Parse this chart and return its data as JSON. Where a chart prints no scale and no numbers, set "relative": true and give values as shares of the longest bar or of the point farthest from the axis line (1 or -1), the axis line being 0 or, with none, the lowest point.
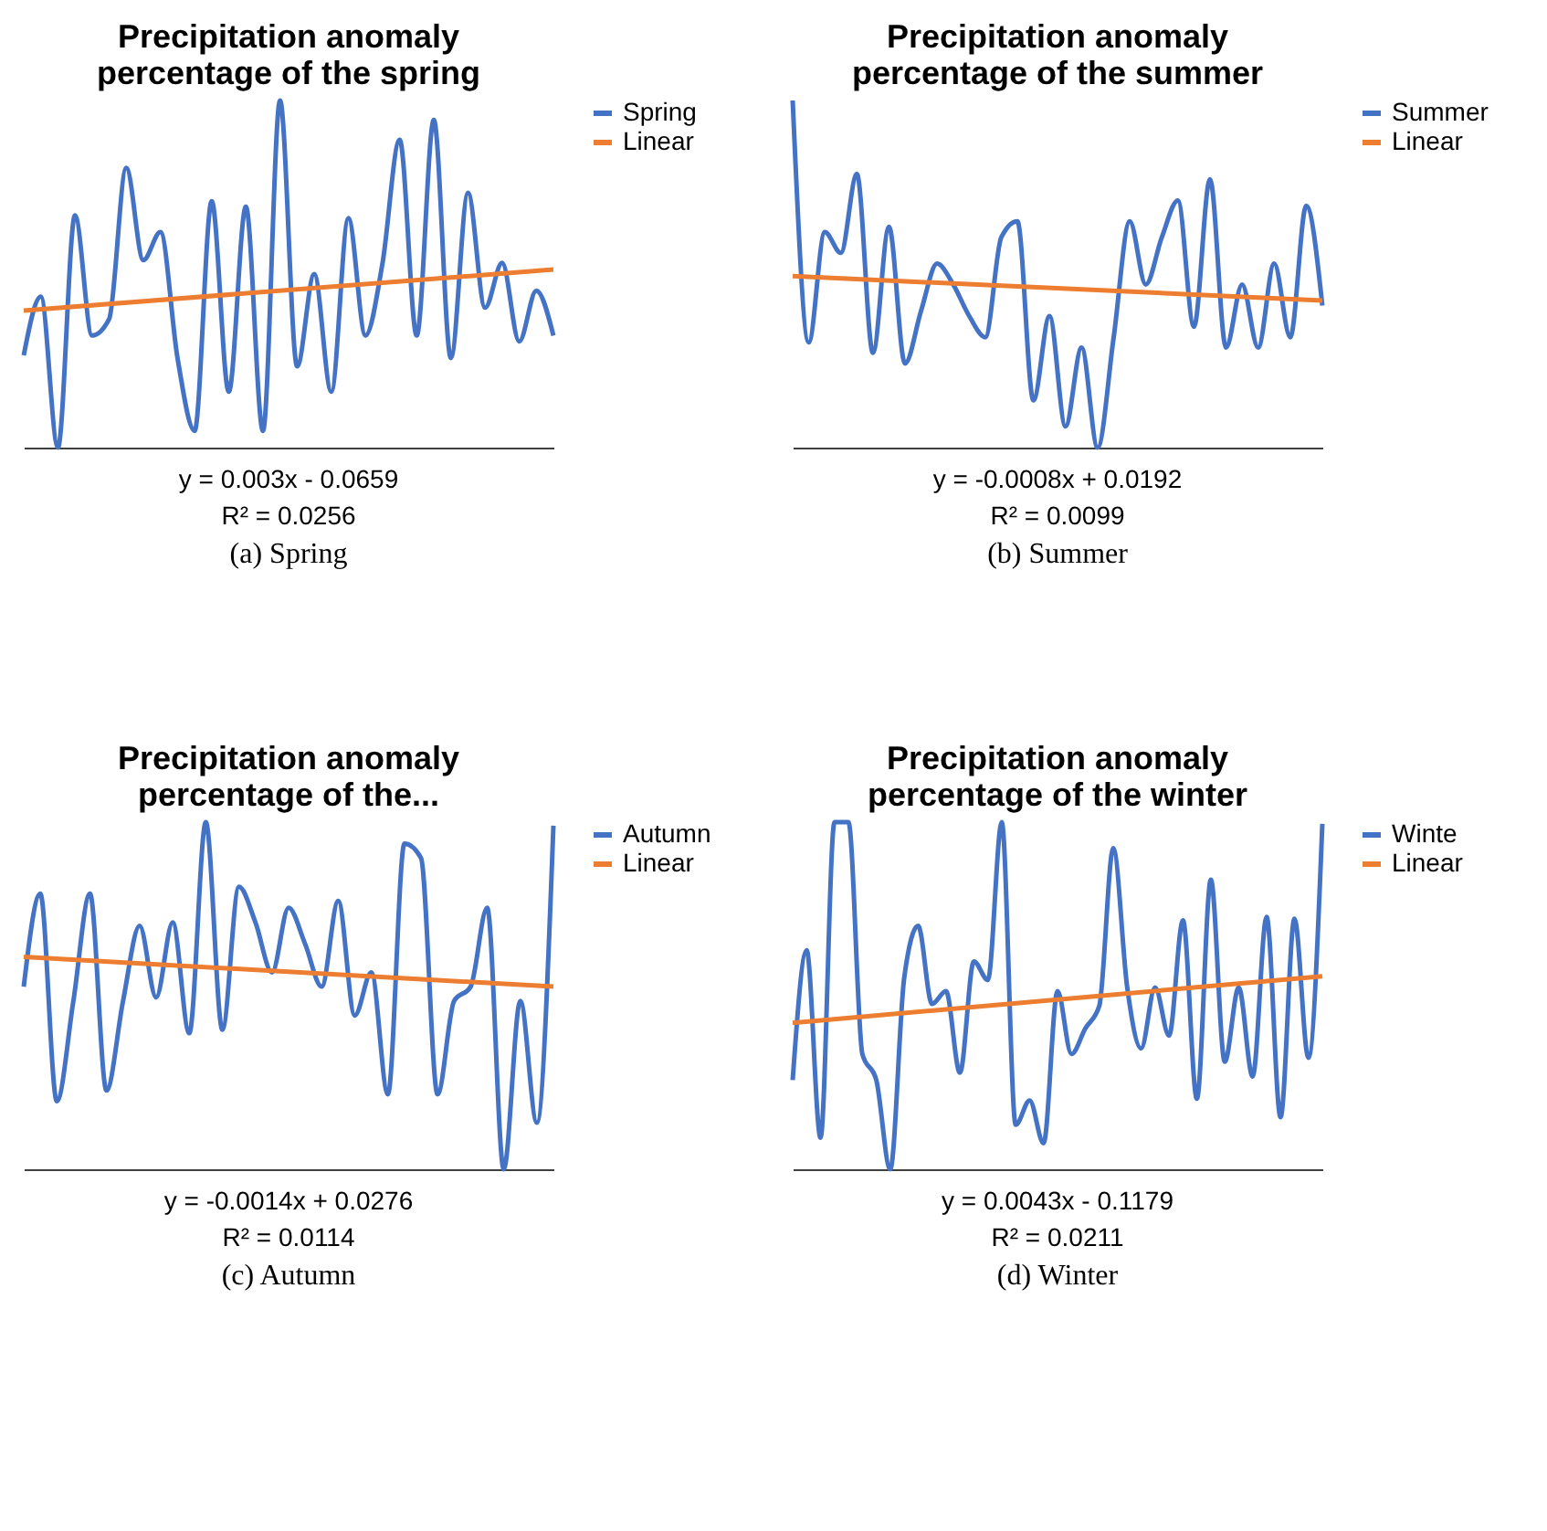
{
  "chart_data": [
    {
      "type": "line",
      "title": "Precipitation anomaly percentage of the spring",
      "relative": true,
      "tick_labels": false,
      "legend": "right",
      "categories": [
        null,
        null,
        null,
        null,
        null,
        null,
        null,
        null,
        null,
        null,
        null,
        null,
        null,
        null,
        null,
        null,
        null,
        null,
        null,
        null,
        null,
        null,
        null,
        null,
        null,
        null,
        null,
        null,
        null,
        null,
        null,
        null
      ],
      "series": [
        {
          "name": "Spring",
          "color": "#4472c4",
          "values": [
            0.266,
            0.435,
            0,
            0.669,
            0.323,
            0.371,
            0.806,
            0.54,
            0.621,
            0.258,
            0.048,
            0.71,
            0.161,
            0.694,
            0.048,
            1,
            0.234,
            0.5,
            0.161,
            0.661,
            0.323,
            0.532,
            0.887,
            0.323,
            0.944,
            0.258,
            0.734,
            0.403,
            0.532,
            0.306,
            0.452,
            0.323
          ]
        },
        {
          "name": "Linear",
          "color": "#ed7d31",
          "values": [
            0.395,
            null,
            null,
            null,
            null,
            null,
            null,
            null,
            null,
            null,
            null,
            null,
            null,
            null,
            null,
            null,
            null,
            null,
            null,
            null,
            null,
            null,
            null,
            null,
            null,
            null,
            null,
            null,
            null,
            null,
            null,
            0.513
          ]
        }
      ],
      "annotations": [
        "y = 0.003x - 0.0659",
        "R² = 0.0256",
        "(a) Spring"
      ]
    },
    {
      "type": "line",
      "title": "Precipitation anomaly percentage of the summer",
      "relative": true,
      "tick_labels": false,
      "legend": "right",
      "categories": [
        null,
        null,
        null,
        null,
        null,
        null,
        null,
        null,
        null,
        null,
        null,
        null,
        null,
        null,
        null,
        null,
        null,
        null,
        null,
        null,
        null,
        null,
        null,
        null,
        null,
        null,
        null,
        null,
        null,
        null,
        null,
        null,
        null,
        null
      ],
      "series": [
        {
          "name": "Summer",
          "color": "#4472c4",
          "values": [
            1,
            0.303,
            0.621,
            0.561,
            0.788,
            0.273,
            0.636,
            0.242,
            0.394,
            0.53,
            0.47,
            0.379,
            0.318,
            0.606,
            0.652,
            0.136,
            0.379,
            0.061,
            0.288,
            0,
            0.318,
            0.652,
            0.47,
            0.606,
            0.712,
            0.348,
            0.773,
            0.288,
            0.47,
            0.288,
            0.53,
            0.318,
            0.697,
            0.409
          ]
        },
        {
          "name": "Linear",
          "color": "#ed7d31",
          "values": [
            0.494,
            null,
            null,
            null,
            null,
            null,
            null,
            null,
            null,
            null,
            null,
            null,
            null,
            null,
            null,
            null,
            null,
            null,
            null,
            null,
            null,
            null,
            null,
            null,
            null,
            null,
            null,
            null,
            null,
            null,
            null,
            null,
            null,
            0.424
          ]
        }
      ],
      "annotations": [
        "y = -0.0008x + 0.0192",
        "R² = 0.0099",
        "(b) Summer"
      ]
    },
    {
      "type": "line",
      "title": "Precipitation anomaly percentage of the...",
      "relative": true,
      "tick_labels": false,
      "legend": "right",
      "categories": [
        null,
        null,
        null,
        null,
        null,
        null,
        null,
        null,
        null,
        null,
        null,
        null,
        null,
        null,
        null,
        null,
        null,
        null,
        null,
        null,
        null,
        null,
        null,
        null,
        null,
        null,
        null,
        null,
        null,
        null,
        null,
        null,
        null
      ],
      "series": [
        {
          "name": "Autumn",
          "color": "#4472c4",
          "values": [
            0.526,
            0.794,
            0.196,
            0.485,
            0.794,
            0.227,
            0.485,
            0.701,
            0.495,
            0.711,
            0.392,
            1,
            0.402,
            0.814,
            0.711,
            0.567,
            0.753,
            0.649,
            0.526,
            0.773,
            0.443,
            0.567,
            0.216,
            0.938,
            0.897,
            0.216,
            0.485,
            0.526,
            0.753,
            0,
            0.485,
            0.134,
            0.99
          ]
        },
        {
          "name": "Linear",
          "color": "#ed7d31",
          "values": [
            0.612,
            null,
            null,
            null,
            null,
            null,
            null,
            null,
            null,
            null,
            null,
            null,
            null,
            null,
            null,
            null,
            null,
            null,
            null,
            null,
            null,
            null,
            null,
            null,
            null,
            null,
            null,
            null,
            null,
            null,
            null,
            null,
            0.526
          ]
        }
      ],
      "annotations": [
        "y = -0.0014x + 0.0276",
        "R² = 0.0114",
        "(c) Autumn"
      ]
    },
    {
      "type": "line",
      "title": "Precipitation anomaly percentage of the winter",
      "relative": true,
      "tick_labels": false,
      "legend": "right",
      "categories": [
        null,
        null,
        null,
        null,
        null,
        null,
        null,
        null,
        null,
        null,
        null,
        null,
        null,
        null,
        null,
        null,
        null,
        null,
        null,
        null,
        null,
        null,
        null,
        null,
        null,
        null,
        null,
        null,
        null,
        null,
        null,
        null,
        null,
        null,
        null,
        null,
        null,
        null,
        null
      ],
      "series": [
        {
          "name": "Winte",
          "color": "#4472c4",
          "values": [
            0.257,
            0.631,
            0.091,
            1,
            1,
            0.332,
            0.257,
            0,
            0.551,
            0.701,
            0.476,
            0.513,
            0.278,
            0.599,
            0.545,
            1,
            0.128,
            0.198,
            0.075,
            0.513,
            0.332,
            0.406,
            0.471,
            0.925,
            0.524,
            0.348,
            0.524,
            0.385,
            0.717,
            0.203,
            0.834,
            0.31,
            0.524,
            0.267,
            0.727,
            0.15,
            0.722,
            0.321,
            0.995
          ]
        },
        {
          "name": "Linear",
          "color": "#ed7d31",
          "values": [
            0.422,
            null,
            null,
            null,
            null,
            null,
            null,
            null,
            null,
            null,
            null,
            null,
            null,
            null,
            null,
            null,
            null,
            null,
            null,
            null,
            null,
            null,
            null,
            null,
            null,
            null,
            null,
            null,
            null,
            null,
            null,
            null,
            null,
            null,
            null,
            null,
            null,
            null,
            0.556
          ]
        }
      ],
      "annotations": [
        "y = 0.0043x - 0.1179",
        "R² = 0.0211",
        "(d) Winter"
      ]
    }
  ]
}
